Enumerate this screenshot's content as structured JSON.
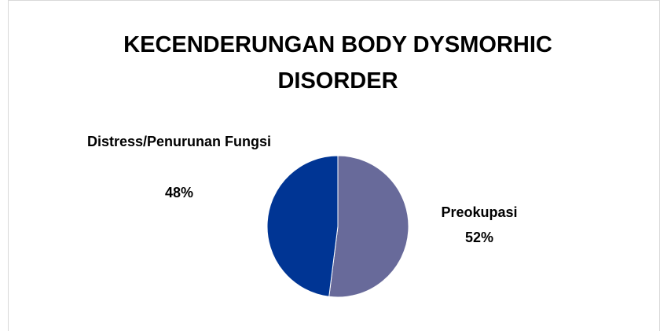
{
  "chart_data": {
    "type": "pie",
    "title": "KECENDERUNGAN BODY DYSMORHIC DISORDER",
    "categories": [
      "Preokupasi",
      "Distress/Penurunan Fungsi"
    ],
    "values": [
      52,
      48
    ],
    "value_labels": [
      "52%",
      "48%"
    ],
    "colors": [
      "#686a9a",
      "#003594"
    ]
  }
}
